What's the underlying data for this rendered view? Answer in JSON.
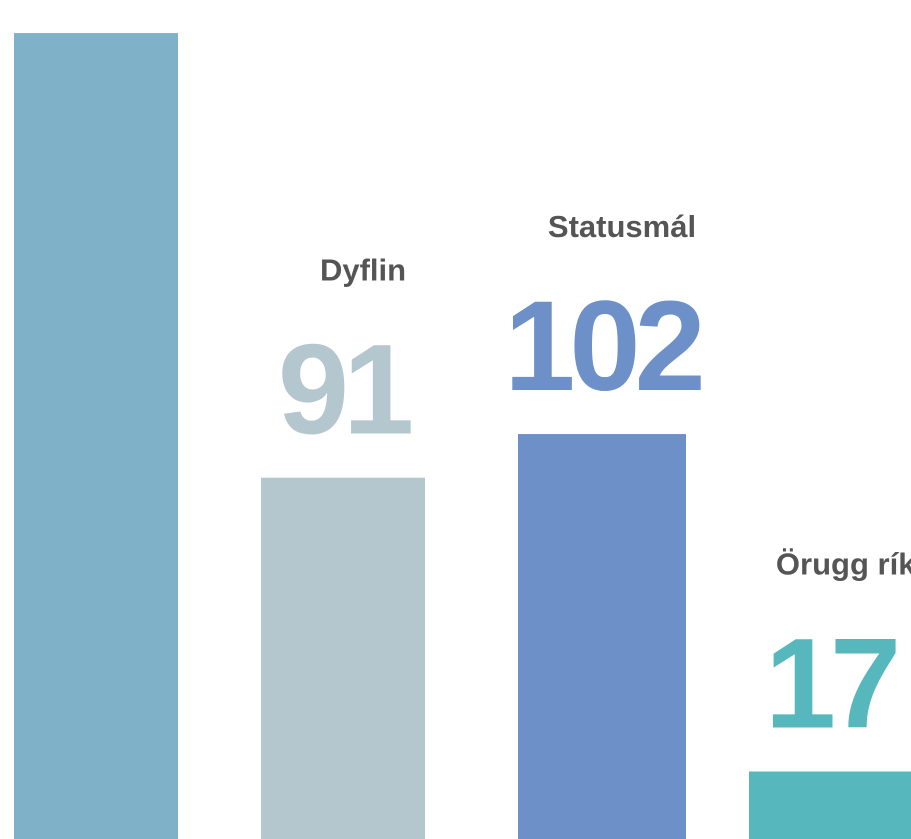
{
  "chart_data": {
    "type": "bar",
    "categories": [
      null,
      "Dyflin",
      "Statusmál",
      "Örugg ríki"
    ],
    "values": [
      203,
      91,
      102,
      17
    ],
    "colors": [
      "#7fb1c8",
      "#b5c7ce",
      "#6e90c8",
      "#56b7bc"
    ]
  }
}
